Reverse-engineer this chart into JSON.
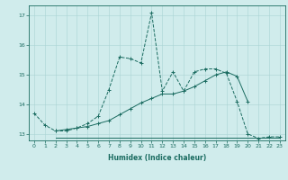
{
  "xlabel": "Humidex (Indice chaleur)",
  "bg_color": "#d0ecec",
  "grid_color": "#aad4d4",
  "line_color": "#1a6b60",
  "xlim_min": -0.5,
  "xlim_max": 23.5,
  "ylim_min": 12.78,
  "ylim_max": 17.35,
  "yticks": [
    13,
    14,
    15,
    16,
    17
  ],
  "xticks": [
    0,
    1,
    2,
    3,
    4,
    5,
    6,
    7,
    8,
    9,
    10,
    11,
    12,
    13,
    14,
    15,
    16,
    17,
    18,
    19,
    20,
    21,
    22,
    23
  ],
  "line1_x": [
    0,
    1,
    2,
    3,
    4,
    5,
    6,
    7,
    8,
    9,
    10,
    11,
    12,
    13,
    14,
    15,
    16,
    17,
    18,
    19,
    20,
    21,
    22,
    23
  ],
  "line1_y": [
    13.7,
    13.3,
    13.1,
    13.1,
    13.2,
    13.35,
    13.6,
    14.5,
    15.6,
    15.55,
    15.4,
    17.1,
    14.45,
    15.1,
    14.45,
    15.1,
    15.2,
    15.2,
    15.05,
    14.1,
    13.0,
    12.85,
    12.9,
    12.9
  ],
  "line2_x": [
    2,
    3,
    4,
    5,
    6,
    7,
    8,
    9,
    10,
    11,
    12,
    13,
    14,
    15,
    16,
    17,
    18,
    19,
    20
  ],
  "line2_y": [
    13.1,
    13.15,
    13.2,
    13.25,
    13.35,
    13.45,
    13.65,
    13.85,
    14.05,
    14.2,
    14.35,
    14.35,
    14.45,
    14.6,
    14.8,
    15.0,
    15.1,
    14.95,
    14.1
  ],
  "line3_x": [
    2,
    3,
    4,
    5,
    6,
    7,
    8,
    9,
    10,
    11,
    12,
    13,
    14,
    15,
    16,
    17,
    18,
    19,
    20,
    21,
    22,
    23
  ],
  "line3_y": [
    12.88,
    12.88,
    12.88,
    12.88,
    12.88,
    12.88,
    12.88,
    12.88,
    12.88,
    12.88,
    12.88,
    12.88,
    12.88,
    12.88,
    12.88,
    12.88,
    12.88,
    12.88,
    12.88,
    12.88,
    12.88,
    12.88
  ]
}
